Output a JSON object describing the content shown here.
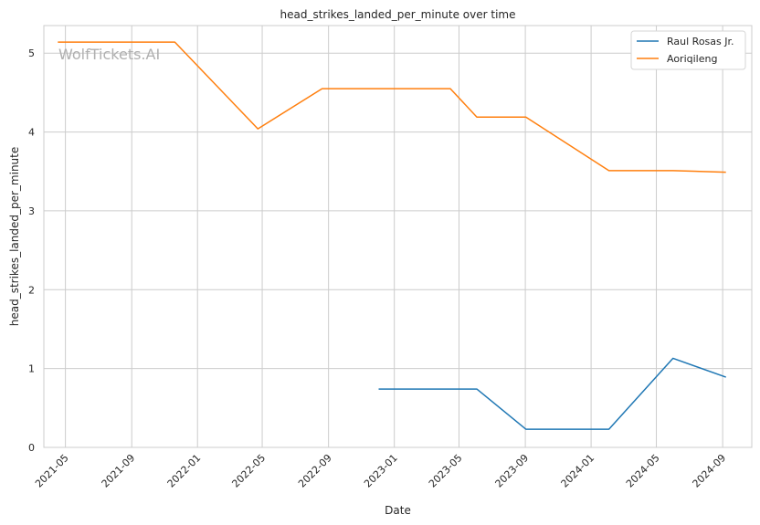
{
  "chart_data": {
    "type": "line",
    "title": "head_strikes_landed_per_minute over time",
    "xlabel": "Date",
    "ylabel": "head_strikes_landed_per_minute",
    "watermark": "WolfTickets.AI",
    "x_ticks": [
      "2021-05",
      "2021-09",
      "2022-01",
      "2022-05",
      "2022-09",
      "2023-01",
      "2023-05",
      "2023-09",
      "2024-01",
      "2024-05",
      "2024-09"
    ],
    "y_ticks": [
      0,
      1,
      2,
      3,
      4,
      5
    ],
    "ylim": [
      0,
      5.35
    ],
    "xlim": [
      "2021-03-22",
      "2024-10-25"
    ],
    "grid": true,
    "legend_position": "top-right",
    "series": [
      {
        "name": "Raul Rosas Jr.",
        "color": "#1f77b4",
        "points": [
          {
            "x": "2022-12-03",
            "y": 0.74
          },
          {
            "x": "2023-06-03",
            "y": 0.74
          },
          {
            "x": "2023-09-02",
            "y": 0.23
          },
          {
            "x": "2024-02-03",
            "y": 0.23
          },
          {
            "x": "2024-06-01",
            "y": 1.13
          },
          {
            "x": "2024-09-07",
            "y": 0.89
          }
        ]
      },
      {
        "name": "Aoriqileng",
        "color": "#ff7f0e",
        "points": [
          {
            "x": "2021-04-17",
            "y": 5.14
          },
          {
            "x": "2021-11-20",
            "y": 5.14
          },
          {
            "x": "2022-04-23",
            "y": 4.04
          },
          {
            "x": "2022-08-20",
            "y": 4.55
          },
          {
            "x": "2023-04-15",
            "y": 4.55
          },
          {
            "x": "2023-06-03",
            "y": 4.19
          },
          {
            "x": "2023-09-02",
            "y": 4.19
          },
          {
            "x": "2024-02-03",
            "y": 3.51
          },
          {
            "x": "2024-06-01",
            "y": 3.51
          },
          {
            "x": "2024-09-07",
            "y": 3.49
          }
        ]
      }
    ]
  }
}
